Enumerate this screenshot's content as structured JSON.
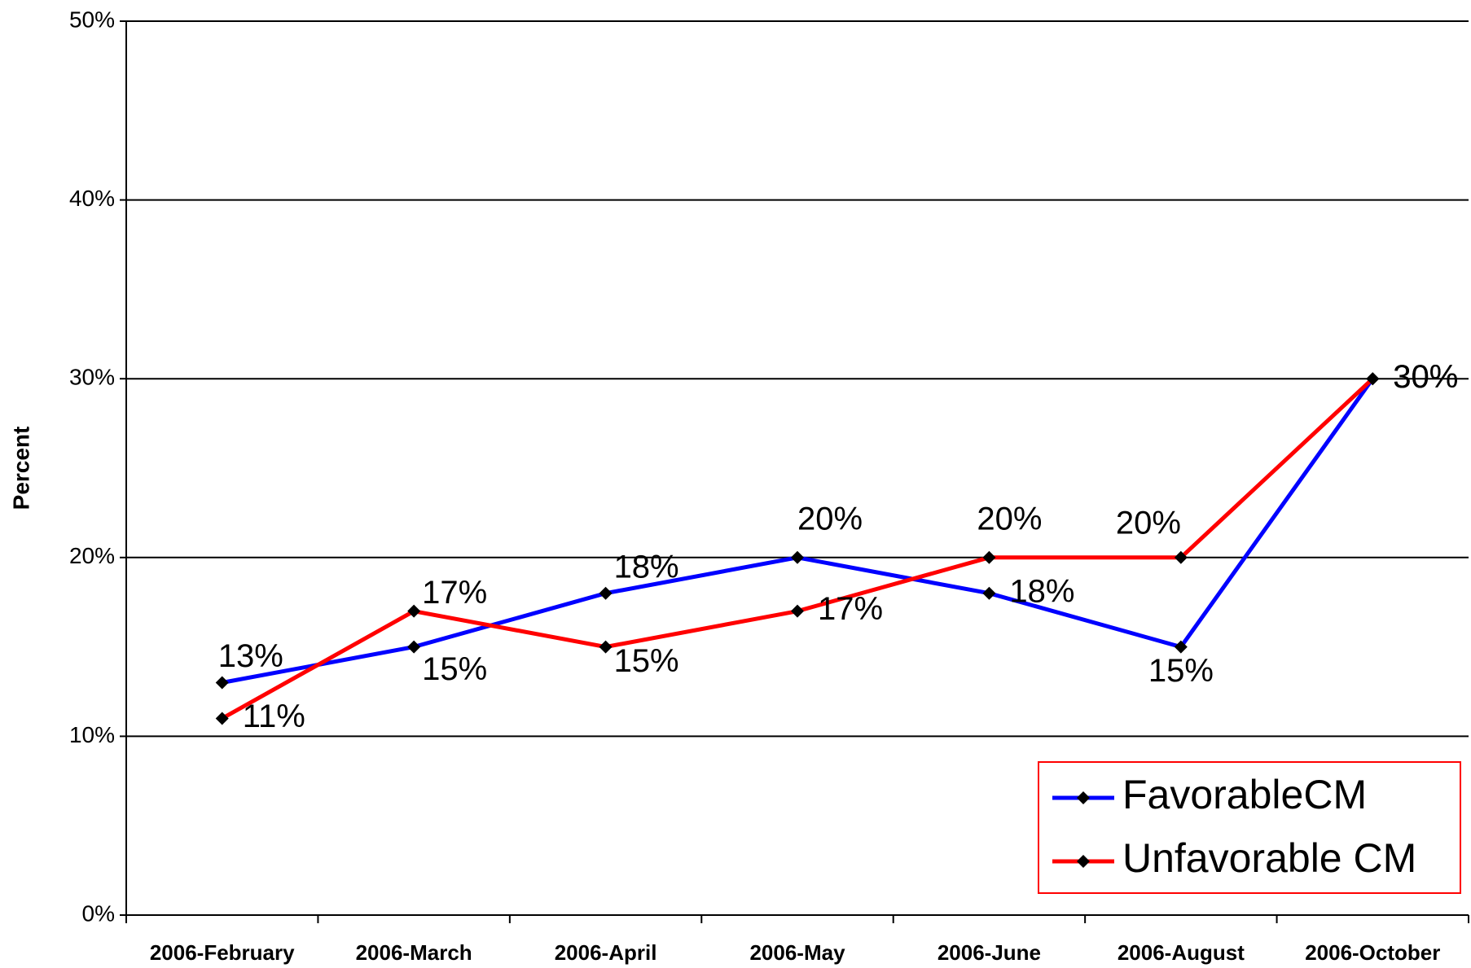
{
  "chart_data": {
    "type": "line",
    "y_label": "Percent",
    "categories": [
      "2006-February",
      "2006-March",
      "2006-April",
      "2006-May",
      "2006-June",
      "2006-August",
      "2006-October"
    ],
    "series": [
      {
        "name": "FavorableCM",
        "color": "#0000ff",
        "values": [
          13,
          15,
          18,
          20,
          18,
          15,
          30
        ],
        "value_labels": [
          "13%",
          "15%",
          "18%",
          "20%",
          "18%",
          "15%",
          "30%"
        ]
      },
      {
        "name": "Unfavorable CM",
        "color": "#ff0000",
        "values": [
          11,
          17,
          15,
          17,
          20,
          20,
          30
        ],
        "value_labels": [
          "11%",
          "17%",
          "15%",
          "17%",
          "20%",
          "20%",
          "30%"
        ]
      }
    ],
    "ylim": [
      0,
      50
    ],
    "yticks": [
      {
        "value": 0,
        "label": "0%"
      },
      {
        "value": 10,
        "label": "10%"
      },
      {
        "value": 20,
        "label": "20%"
      },
      {
        "value": 30,
        "label": "30%"
      },
      {
        "value": 40,
        "label": "40%"
      },
      {
        "value": 50,
        "label": "50%"
      }
    ],
    "grid": true
  }
}
